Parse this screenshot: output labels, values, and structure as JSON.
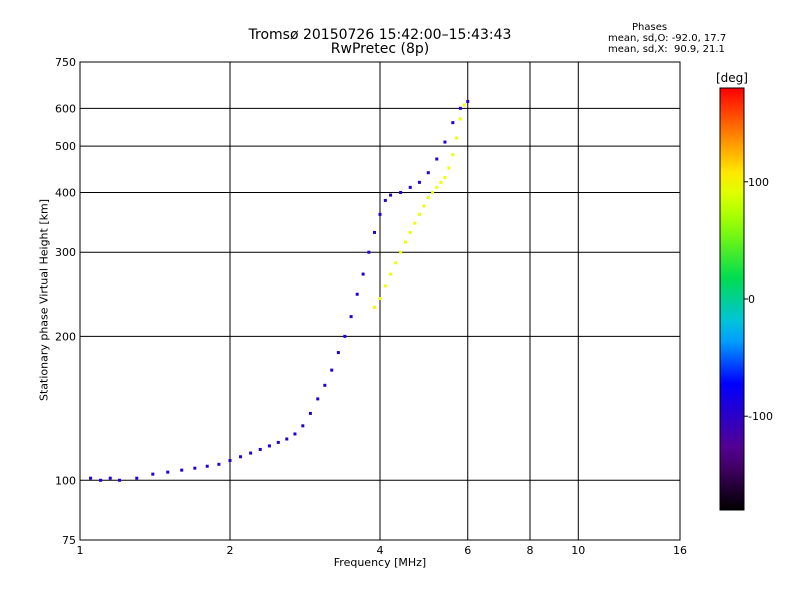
{
  "chart_data": {
    "type": "scatter",
    "title": "Tromsø 20150726 15:42:00–15:43:43",
    "subtitle": "RwPretec (8p)",
    "xlabel": "Frequency [MHz]",
    "ylabel": "Stationary phase Virtual Height [km]",
    "x_scale": "log",
    "y_scale": "log",
    "xlim": [
      1,
      16
    ],
    "ylim": [
      75,
      750
    ],
    "x_ticks": [
      1,
      2,
      4,
      6,
      8,
      10,
      16
    ],
    "x_tick_labels": [
      "1",
      "2",
      "4",
      "6",
      "8",
      "10",
      "16"
    ],
    "y_ticks": [
      75,
      100,
      200,
      300,
      400,
      500,
      600,
      750
    ],
    "y_tick_labels": [
      "75",
      "100",
      "200",
      "300",
      "400",
      "500",
      "600",
      "750"
    ],
    "grid": true,
    "stats": {
      "title": "Phases",
      "o_line": "mean, sd,O: -92.0, 17.7",
      "x_line": "mean, sd,X:  90.9, 21.1"
    },
    "colorbar": {
      "label": "[deg]",
      "range": [
        -180,
        180
      ],
      "ticks": [
        100,
        0,
        -100
      ],
      "tick_labels": [
        "100",
        "0",
        "-100"
      ]
    },
    "series": [
      {
        "name": "",
        "color_phase": -95,
        "points": [
          [
            1.05,
            101
          ],
          [
            1.1,
            100
          ],
          [
            1.15,
            101
          ],
          [
            1.2,
            100
          ],
          [
            1.3,
            101
          ],
          [
            1.4,
            103
          ],
          [
            1.5,
            104
          ],
          [
            1.6,
            105
          ],
          [
            1.7,
            106
          ],
          [
            1.8,
            107
          ],
          [
            1.9,
            108
          ],
          [
            2.0,
            110
          ],
          [
            2.1,
            112
          ],
          [
            2.2,
            114
          ],
          [
            2.3,
            116
          ],
          [
            2.4,
            118
          ],
          [
            2.5,
            120
          ],
          [
            2.6,
            122
          ],
          [
            2.7,
            125
          ],
          [
            2.8,
            130
          ],
          [
            2.9,
            138
          ],
          [
            3.0,
            148
          ],
          [
            3.1,
            158
          ],
          [
            3.2,
            170
          ],
          [
            3.3,
            185
          ],
          [
            3.4,
            200
          ],
          [
            3.5,
            220
          ],
          [
            3.6,
            245
          ],
          [
            3.7,
            270
          ],
          [
            3.8,
            300
          ],
          [
            3.9,
            330
          ],
          [
            4.0,
            360
          ],
          [
            4.1,
            385
          ],
          [
            4.2,
            395
          ],
          [
            4.4,
            400
          ],
          [
            4.6,
            410
          ],
          [
            4.8,
            420
          ],
          [
            5.0,
            440
          ],
          [
            5.2,
            470
          ],
          [
            5.4,
            510
          ],
          [
            5.6,
            560
          ],
          [
            5.8,
            600
          ],
          [
            6.0,
            620
          ]
        ]
      },
      {
        "name": "",
        "color_phase": 95,
        "points": [
          [
            3.9,
            230
          ],
          [
            4.0,
            240
          ],
          [
            4.1,
            255
          ],
          [
            4.2,
            270
          ],
          [
            4.3,
            285
          ],
          [
            4.4,
            300
          ],
          [
            4.5,
            315
          ],
          [
            4.6,
            330
          ],
          [
            4.7,
            345
          ],
          [
            4.8,
            360
          ],
          [
            4.9,
            375
          ],
          [
            5.0,
            390
          ],
          [
            5.1,
            400
          ],
          [
            5.2,
            410
          ],
          [
            5.3,
            420
          ],
          [
            5.4,
            430
          ],
          [
            5.5,
            450
          ],
          [
            5.6,
            480
          ],
          [
            5.7,
            520
          ],
          [
            5.8,
            570
          ],
          [
            5.9,
            610
          ]
        ]
      }
    ]
  }
}
